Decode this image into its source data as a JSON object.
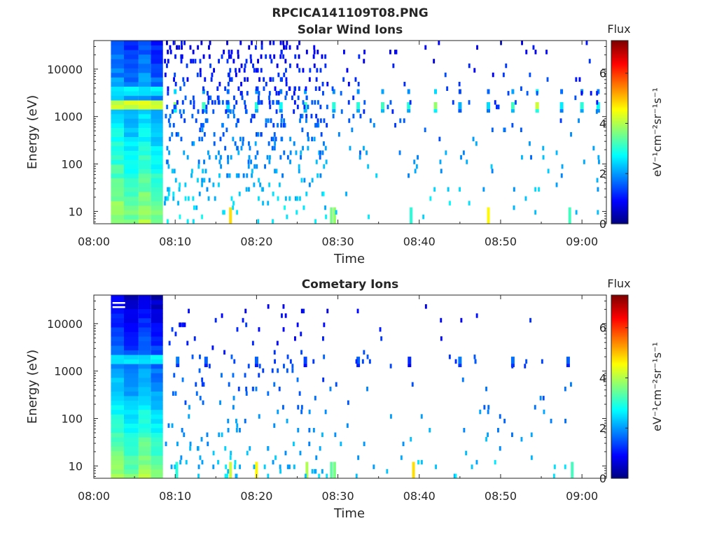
{
  "figure_title": "RPCICA141109T08.PNG",
  "colorbar": {
    "title": "Flux",
    "unit_label": "eV⁻¹cm⁻²sr⁻¹s⁻¹",
    "ticks": [
      "0",
      "2",
      "4",
      "6"
    ],
    "range": [
      0,
      7.3
    ],
    "colormap": "jet"
  },
  "chart_data": [
    {
      "type": "heatmap",
      "title": "Solar Wind Ions",
      "xlabel": "Time",
      "ylabel": "Energy (eV)",
      "x_ticks": [
        "08:00",
        "08:10",
        "08:20",
        "08:30",
        "08:40",
        "08:50",
        "09:00"
      ],
      "x_range_minutes": [
        0,
        63
      ],
      "y_ticks": [
        "10",
        "100",
        "1000",
        "10000"
      ],
      "y_scale": "log",
      "y_range": [
        5.5,
        40000
      ],
      "z_range": [
        0,
        7.3
      ],
      "grid": false,
      "continuous_block": {
        "t_start": 2.1,
        "t_end": 8.5,
        "lanes": [
          3.7,
          5.5,
          7.0,
          8.5
        ]
      },
      "hotspots": [
        {
          "t": 10.0,
          "E": 1700,
          "z": 3.8
        },
        {
          "t": 13.5,
          "E": 1700,
          "z": 3.2
        },
        {
          "t": 16.5,
          "E": 1700,
          "z": 2.6
        },
        {
          "t": 20.0,
          "E": 1700,
          "z": 3.0
        },
        {
          "t": 23.0,
          "E": 1700,
          "z": 2.8
        },
        {
          "t": 26.0,
          "E": 1700,
          "z": 3.2
        },
        {
          "t": 29.5,
          "E": 1700,
          "z": 3.0
        },
        {
          "t": 32.5,
          "E": 1700,
          "z": 3.0
        },
        {
          "t": 35.5,
          "E": 1700,
          "z": 3.2
        },
        {
          "t": 38.7,
          "E": 1700,
          "z": 3.0
        },
        {
          "t": 42.0,
          "E": 1700,
          "z": 3.8
        },
        {
          "t": 45.0,
          "E": 1700,
          "z": 2.2
        },
        {
          "t": 48.5,
          "E": 1700,
          "z": 2.5
        },
        {
          "t": 51.5,
          "E": 1700,
          "z": 3.2
        },
        {
          "t": 54.5,
          "E": 1700,
          "z": 4.2
        },
        {
          "t": 57.5,
          "E": 1700,
          "z": 2.6
        },
        {
          "t": 60.0,
          "E": 1700,
          "z": 3.0
        },
        {
          "t": 62.0,
          "E": 1700,
          "z": 2.8
        }
      ],
      "low_energy_bursts": [
        {
          "t": 16.8,
          "z": 4.8
        },
        {
          "t": 29.2,
          "z": 3.6
        },
        {
          "t": 29.6,
          "z": 3.8
        },
        {
          "t": 39.0,
          "z": 3.0
        },
        {
          "t": 48.5,
          "z": 4.6
        },
        {
          "t": 58.5,
          "z": 3.2
        }
      ],
      "scatter_density": "high"
    },
    {
      "type": "heatmap",
      "title": "Cometary Ions",
      "xlabel": "Time",
      "ylabel": "Energy (eV)",
      "x_ticks": [
        "08:00",
        "08:10",
        "08:20",
        "08:30",
        "08:40",
        "08:50",
        "09:00"
      ],
      "x_range_minutes": [
        0,
        63
      ],
      "y_ticks": [
        "10",
        "100",
        "1000",
        "10000"
      ],
      "y_scale": "log",
      "y_range": [
        5.5,
        40000
      ],
      "z_range": [
        0,
        7.3
      ],
      "grid": false,
      "continuous_block": {
        "t_start": 2.1,
        "t_end": 8.5,
        "lanes": [
          3.7,
          5.5,
          7.0,
          8.5
        ]
      },
      "hotspots": [
        {
          "t": 10.3,
          "E": 1700,
          "z": 1.8
        },
        {
          "t": 13.8,
          "E": 1700,
          "z": 1.6
        },
        {
          "t": 20.0,
          "E": 1700,
          "z": 1.6
        },
        {
          "t": 26.0,
          "E": 1700,
          "z": 1.4
        },
        {
          "t": 32.5,
          "E": 1700,
          "z": 1.6
        },
        {
          "t": 38.8,
          "E": 1700,
          "z": 1.2
        },
        {
          "t": 45.0,
          "E": 1700,
          "z": 1.8
        },
        {
          "t": 51.5,
          "E": 1700,
          "z": 1.7
        },
        {
          "t": 58.3,
          "E": 1700,
          "z": 1.6
        }
      ],
      "low_energy_bursts": [
        {
          "t": 10.2,
          "z": 3.0
        },
        {
          "t": 16.8,
          "z": 4.2
        },
        {
          "t": 20.0,
          "z": 4.6
        },
        {
          "t": 26.2,
          "z": 4.0
        },
        {
          "t": 29.2,
          "z": 3.4
        },
        {
          "t": 29.6,
          "z": 3.6
        },
        {
          "t": 39.3,
          "z": 4.8
        },
        {
          "t": 58.8,
          "z": 3.2
        }
      ],
      "scatter_density": "low"
    }
  ]
}
